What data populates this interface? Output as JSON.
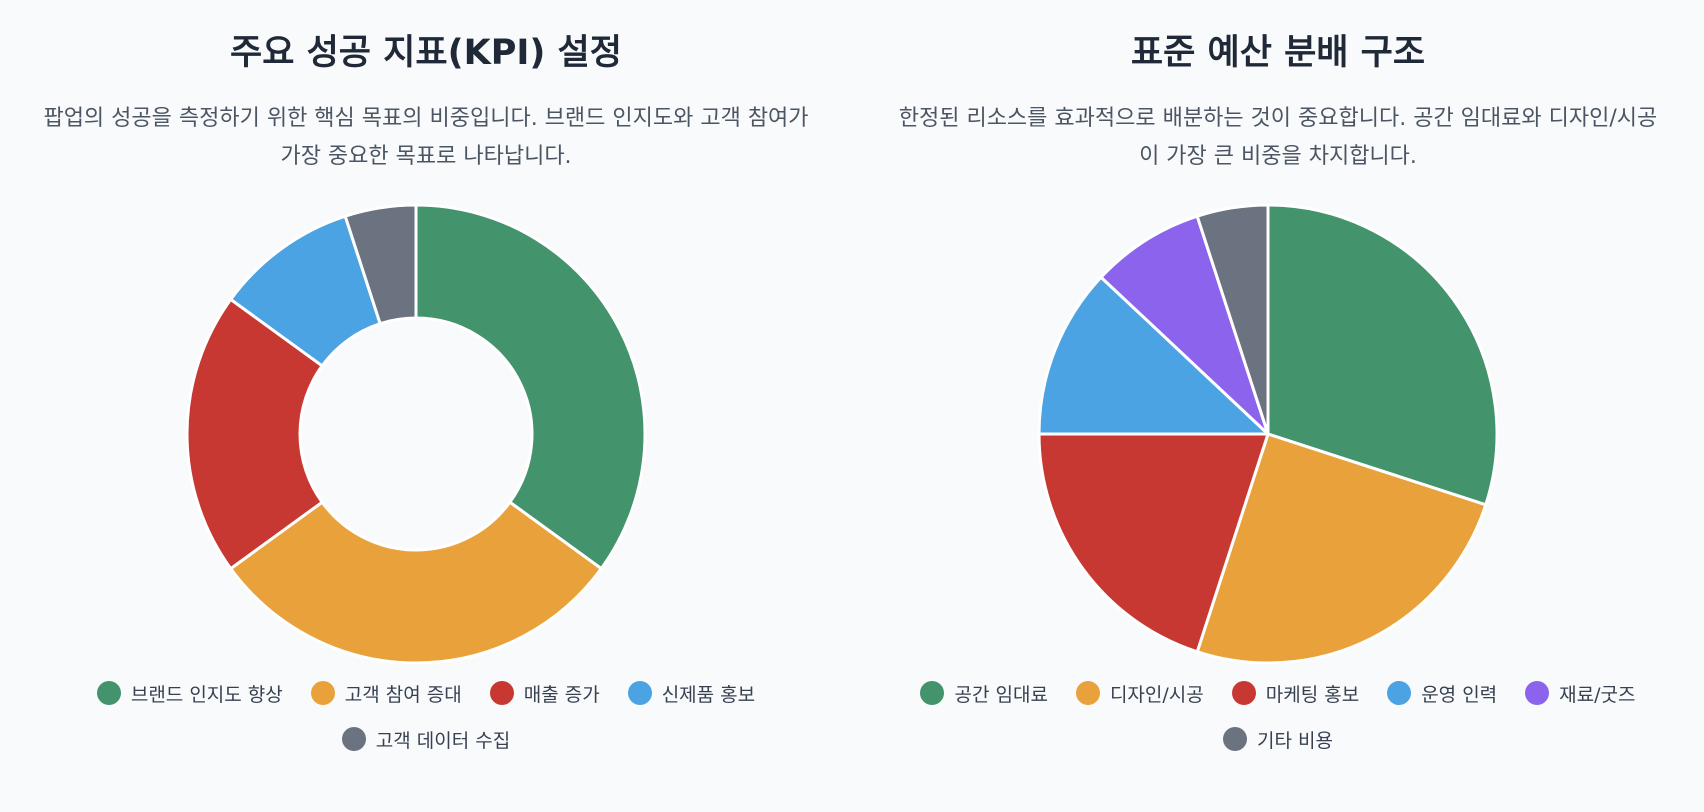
{
  "chart_data": [
    {
      "type": "pie",
      "variant": "doughnut",
      "title": "주요 성공 지표(KPI) 설정",
      "subtitle": "팝업의 성공을 측정하기 위한 핵심 목표의 비중입니다. 브랜드 인지도와 고객 참여가 가장 중요한 목표로 나타납니다.",
      "categories": [
        "브랜드 인지도 향상",
        "고객 참여 증대",
        "매출 증가",
        "신제품 홍보",
        "고객 데이터 수집"
      ],
      "values": [
        35,
        30,
        20,
        10,
        5
      ],
      "colors": [
        "#43936c",
        "#e9a23b",
        "#c83832",
        "#4ba3e3",
        "#6b7280"
      ],
      "legend": "bottom"
    },
    {
      "type": "pie",
      "variant": "pie",
      "title": "표준 예산 분배 구조",
      "subtitle": "한정된 리소스를 효과적으로 배분하는 것이 중요합니다. 공간 임대료와 디자인/시공이 가장 큰 비중을 차지합니다.",
      "categories": [
        "공간 임대료",
        "디자인/시공",
        "마케팅 홍보",
        "운영 인력",
        "재료/굿즈",
        "기타 비용"
      ],
      "values": [
        30,
        25,
        20,
        12,
        8,
        5
      ],
      "colors": [
        "#43936c",
        "#e9a23b",
        "#c83832",
        "#4ba3e3",
        "#8b63ec",
        "#6b7280"
      ],
      "legend": "bottom"
    }
  ]
}
